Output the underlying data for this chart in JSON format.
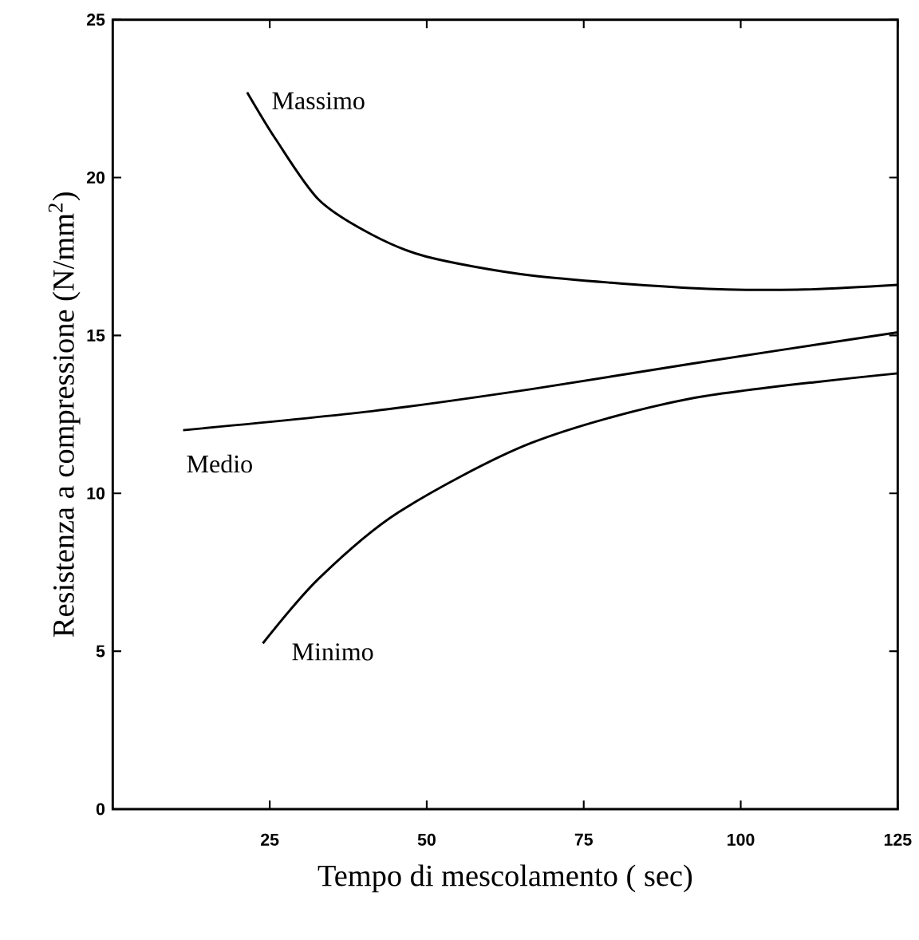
{
  "chart_data": {
    "type": "line",
    "xlabel": "Tempo di mescolamento ( sec)",
    "ylabel": "Resistenza a compressione (N/mm$^{2}$)",
    "xlim": [
      0,
      125
    ],
    "ylim": [
      0,
      25
    ],
    "xticks": [
      25,
      50,
      75,
      100,
      125
    ],
    "yticks": [
      0,
      5,
      10,
      15,
      20,
      25
    ],
    "grid": false,
    "legend": false,
    "marker": "none",
    "line_style": "solid",
    "series": [
      {
        "name": "Massimo",
        "color": "#000000",
        "x": [
          21.4,
          26,
          32.8,
          41.2,
          49.9,
          66.7,
          92,
          109,
          125
        ],
        "values": [
          22.7,
          21.2,
          19.3,
          18.2,
          17.5,
          16.9,
          16.5,
          16.45,
          16.6
        ]
      },
      {
        "name": "Medio",
        "color": "#000000",
        "x": [
          11.2,
          41.2,
          66.7,
          92,
          125
        ],
        "values": [
          12.0,
          12.6,
          13.3,
          14.1,
          15.1
        ]
      },
      {
        "name": "Minimo",
        "color": "#000000",
        "x": [
          23.9,
          32.8,
          45.5,
          66.7,
          92,
          125
        ],
        "values": [
          5.25,
          7.3,
          9.4,
          11.6,
          13.0,
          13.8
        ]
      }
    ]
  }
}
